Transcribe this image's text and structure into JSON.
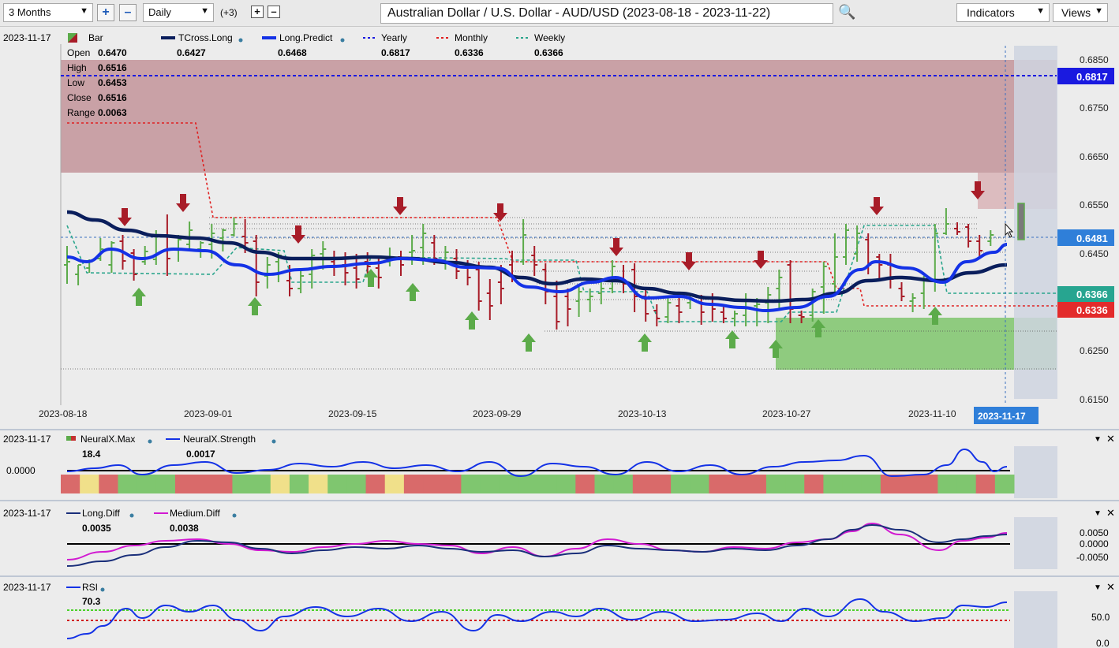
{
  "toolbar": {
    "range": "3 Months",
    "interval": "Daily",
    "extra": "(+3)",
    "title": "Australian Dollar / U.S. Dollar - AUD/USD (2023-08-18 - 2023-11-22)",
    "indicators": "Indicators",
    "views": "Views"
  },
  "main": {
    "date": "2023-11-17",
    "legend": {
      "bar": "Bar",
      "tcross": "TCross.Long",
      "tcross_val": "0.6427",
      "predict": "Long.Predict",
      "predict_val": "0.6468",
      "yearly": "Yearly",
      "yearly_val": "0.6817",
      "monthly": "Monthly",
      "monthly_val": "0.6336",
      "weekly": "Weekly",
      "weekly_val": "0.6366"
    },
    "ohlc": {
      "open_l": "Open",
      "open": "0.6470",
      "high_l": "High",
      "high": "0.6516",
      "low_l": "Low",
      "low": "0.6453",
      "close_l": "Close",
      "close": "0.6516",
      "range_l": "Range",
      "range": "0.0063"
    },
    "yticks": [
      "0.6850",
      "0.6750",
      "0.6650",
      "0.6550",
      "0.6450",
      "0.6250",
      "0.6150"
    ],
    "xticks": [
      "2023-08-18",
      "2023-09-01",
      "2023-09-15",
      "2023-09-29",
      "2023-10-13",
      "2023-10-27",
      "2023-11-10"
    ],
    "cursor_date": "2023-11-17",
    "badges": {
      "yearly": "0.6817",
      "predict": "0.6481",
      "weekly": "0.6366",
      "monthly": "0.6336"
    },
    "colors": {
      "bull": "#5cab4a",
      "bear": "#a81c28",
      "yearly": "#1a1ae0",
      "monthly": "#e02020",
      "weekly": "#2aa58c",
      "tcross": "#0a1e5c",
      "predict": "#1432e6"
    }
  },
  "neural": {
    "date": "2023-11-17",
    "max_label": "NeuralX.Max",
    "max_val": "18.4",
    "strength_label": "NeuralX.Strength",
    "strength_val": "0.0017",
    "ytick": "0.0000"
  },
  "diff": {
    "date": "2023-11-17",
    "long_label": "Long.Diff",
    "long_val": "0.0035",
    "medium_label": "Medium.Diff",
    "medium_val": "0.0038",
    "yticks": [
      "0.0050",
      "0.0000",
      "-0.0050"
    ]
  },
  "rsi": {
    "date": "2023-11-17",
    "label": "RSI",
    "val": "70.3",
    "yticks": [
      "50.0",
      "0.0"
    ]
  }
}
